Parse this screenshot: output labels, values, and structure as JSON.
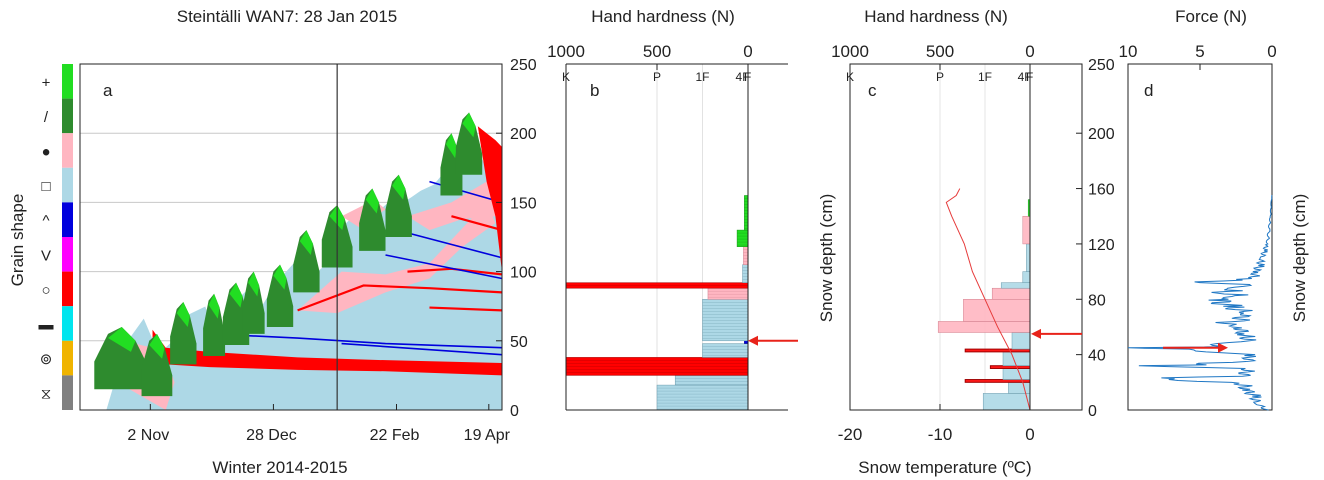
{
  "figure": {
    "title_a": "Steintälli WAN7: 28 Jan 2015",
    "title_b": "Hand hardness (N)",
    "title_c": "Hand hardness (N)",
    "title_d": "Force (N)"
  },
  "colors": {
    "precip_particles": "#22dd22",
    "decomposing": "#2e8b2e",
    "rounded": "#ffb6c1",
    "faceted": "#add8e6",
    "depth_hoar": "#0000dd",
    "surface_hoar": "#ff00ff",
    "melt_forms": "#ff0000",
    "ice": "#00e5ee",
    "graupel": "#f0b400",
    "unknown": "#808080",
    "profile_blue": "#1f77c4",
    "arrow_red": "#e8231a"
  },
  "chart_data": [
    {
      "panel": "a",
      "type": "area",
      "title": "Steintälli WAN7: 28 Jan 2015",
      "xlabel": "Winter 2014-2015",
      "ylabel": "Grain shape",
      "x_ticks": [
        "2 Nov",
        "28 Dec",
        "22 Feb",
        "19 Apr"
      ],
      "y_ticks": [
        0,
        50,
        100,
        150,
        200,
        250
      ],
      "ylim": [
        0,
        250
      ],
      "grain_shape_legend": [
        "+",
        "/",
        "●",
        "□",
        "^",
        "V",
        "○",
        "▬",
        "⊚",
        "⧖"
      ],
      "grain_colors": [
        "precip_particles",
        "decomposing",
        "rounded",
        "faceted",
        "depth_hoar",
        "surface_hoar",
        "melt_forms",
        "ice",
        "graupel",
        "unknown"
      ],
      "marked_date": "28 Jan",
      "snow_height": {
        "dates": [
          "14 Oct",
          "24 Oct",
          "2 Nov",
          "15 Nov",
          "1 Dec",
          "15 Dec",
          "28 Dec",
          "10 Jan",
          "20 Jan",
          "28 Jan",
          "10 Feb",
          "22 Feb",
          "5 Mar",
          "20 Mar",
          "5 Apr",
          "19 Apr",
          "22 Apr"
        ],
        "values": [
          0,
          58,
          50,
          58,
          55,
          70,
          85,
          108,
          112,
          140,
          148,
          152,
          168,
          185,
          190,
          215,
          130
        ]
      }
    },
    {
      "panel": "b",
      "type": "bar",
      "title": "Hand hardness (N)",
      "x_ticks": [
        1000,
        500,
        0
      ],
      "x_reversed": true,
      "hardness_labels": [
        "K",
        "P",
        "1F",
        "4F",
        "F"
      ],
      "ylim": [
        0,
        250
      ],
      "layers": [
        {
          "bottom": 0,
          "top": 18,
          "hardness": 500,
          "grain": "faceted"
        },
        {
          "bottom": 18,
          "top": 25,
          "hardness": 400,
          "grain": "faceted"
        },
        {
          "bottom": 25,
          "top": 38,
          "hardness": 1000,
          "grain": "melt_forms"
        },
        {
          "bottom": 38,
          "top": 48,
          "hardness": 250,
          "grain": "faceted"
        },
        {
          "bottom": 48,
          "top": 50,
          "hardness": 20,
          "grain": "depth_hoar"
        },
        {
          "bottom": 50,
          "top": 80,
          "hardness": 250,
          "grain": "faceted"
        },
        {
          "bottom": 80,
          "top": 88,
          "hardness": 220,
          "grain": "rounded"
        },
        {
          "bottom": 88,
          "top": 92,
          "hardness": 1000,
          "grain": "melt_forms"
        },
        {
          "bottom": 92,
          "top": 105,
          "hardness": 30,
          "grain": "faceted"
        },
        {
          "bottom": 105,
          "top": 118,
          "hardness": 25,
          "grain": "rounded"
        },
        {
          "bottom": 118,
          "top": 130,
          "hardness": 60,
          "grain": "precip_particles"
        },
        {
          "bottom": 130,
          "top": 155,
          "hardness": 20,
          "grain": "precip_particles"
        }
      ],
      "arrow_depth": 50
    },
    {
      "panel": "c",
      "type": "bar",
      "title": "Hand hardness (N)",
      "xlabel": "Snow temperature (ºC)",
      "ylabel": "Snow depth (cm)",
      "x_ticks_top": [
        1000,
        500,
        0
      ],
      "x_ticks_bottom": [
        -20,
        -10,
        0
      ],
      "hardness_labels": [
        "K",
        "P",
        "1F",
        "4F",
        "F"
      ],
      "y_ticks": [
        0,
        40,
        80,
        120,
        160,
        200,
        250
      ],
      "ylim": [
        0,
        250
      ],
      "layers": [
        {
          "bottom": 0,
          "top": 12,
          "hardness": 260,
          "grain": "faceted"
        },
        {
          "bottom": 12,
          "top": 20,
          "hardness": 120,
          "grain": "faceted"
        },
        {
          "bottom": 20,
          "top": 22,
          "hardness": 360,
          "grain": "melt_forms"
        },
        {
          "bottom": 22,
          "top": 30,
          "hardness": 150,
          "grain": "faceted"
        },
        {
          "bottom": 30,
          "top": 32,
          "hardness": 220,
          "grain": "melt_forms"
        },
        {
          "bottom": 32,
          "top": 42,
          "hardness": 150,
          "grain": "faceted"
        },
        {
          "bottom": 42,
          "top": 44,
          "hardness": 360,
          "grain": "melt_forms"
        },
        {
          "bottom": 44,
          "top": 56,
          "hardness": 100,
          "grain": "faceted"
        },
        {
          "bottom": 56,
          "top": 64,
          "hardness": 510,
          "grain": "rounded"
        },
        {
          "bottom": 64,
          "top": 80,
          "hardness": 370,
          "grain": "rounded"
        },
        {
          "bottom": 80,
          "top": 88,
          "hardness": 210,
          "grain": "rounded"
        },
        {
          "bottom": 88,
          "top": 92,
          "hardness": 160,
          "grain": "faceted"
        },
        {
          "bottom": 92,
          "top": 100,
          "hardness": 40,
          "grain": "faceted"
        },
        {
          "bottom": 100,
          "top": 120,
          "hardness": 20,
          "grain": "faceted"
        },
        {
          "bottom": 120,
          "top": 140,
          "hardness": 40,
          "grain": "rounded"
        },
        {
          "bottom": 140,
          "top": 152,
          "hardness": 10,
          "grain": "precip_particles"
        }
      ],
      "temperature_profile": {
        "depth": [
          0,
          20,
          40,
          60,
          80,
          100,
          120,
          140,
          150,
          155,
          160
        ],
        "temp": [
          0,
          -0.8,
          -2.0,
          -3.6,
          -5.0,
          -6.4,
          -7.3,
          -8.7,
          -9.3,
          -8.2,
          -7.8
        ]
      },
      "arrow_depth": 55
    },
    {
      "panel": "d",
      "type": "line",
      "title": "Force (N)",
      "ylabel": "Snow depth (cm)",
      "x_ticks": [
        10,
        5,
        0
      ],
      "x_reversed": true,
      "ylim": [
        0,
        250
      ],
      "series": [
        {
          "depth": [
            0,
            5,
            10,
            15,
            20,
            22,
            25,
            30,
            32,
            35,
            40,
            44,
            45,
            46,
            50,
            55,
            60,
            62,
            65,
            70,
            75,
            80,
            82,
            85,
            88,
            90,
            92,
            95,
            100,
            105,
            110,
            115,
            120,
            130,
            140,
            150,
            156
          ],
          "force": [
            0.4,
            0.9,
            1.2,
            1.6,
            2.0,
            8.0,
            1.8,
            1.5,
            7.0,
            1.4,
            1.6,
            5.0,
            9.2,
            4.0,
            1.5,
            1.8,
            2.0,
            3.2,
            2.2,
            1.5,
            2.8,
            3.5,
            2.0,
            3.0,
            2.2,
            1.6,
            4.5,
            1.2,
            1.0,
            0.8,
            0.6,
            0.5,
            0.3,
            0.2,
            0.1,
            0.05,
            0
          ]
        }
      ],
      "arrow_depth": 45
    }
  ]
}
